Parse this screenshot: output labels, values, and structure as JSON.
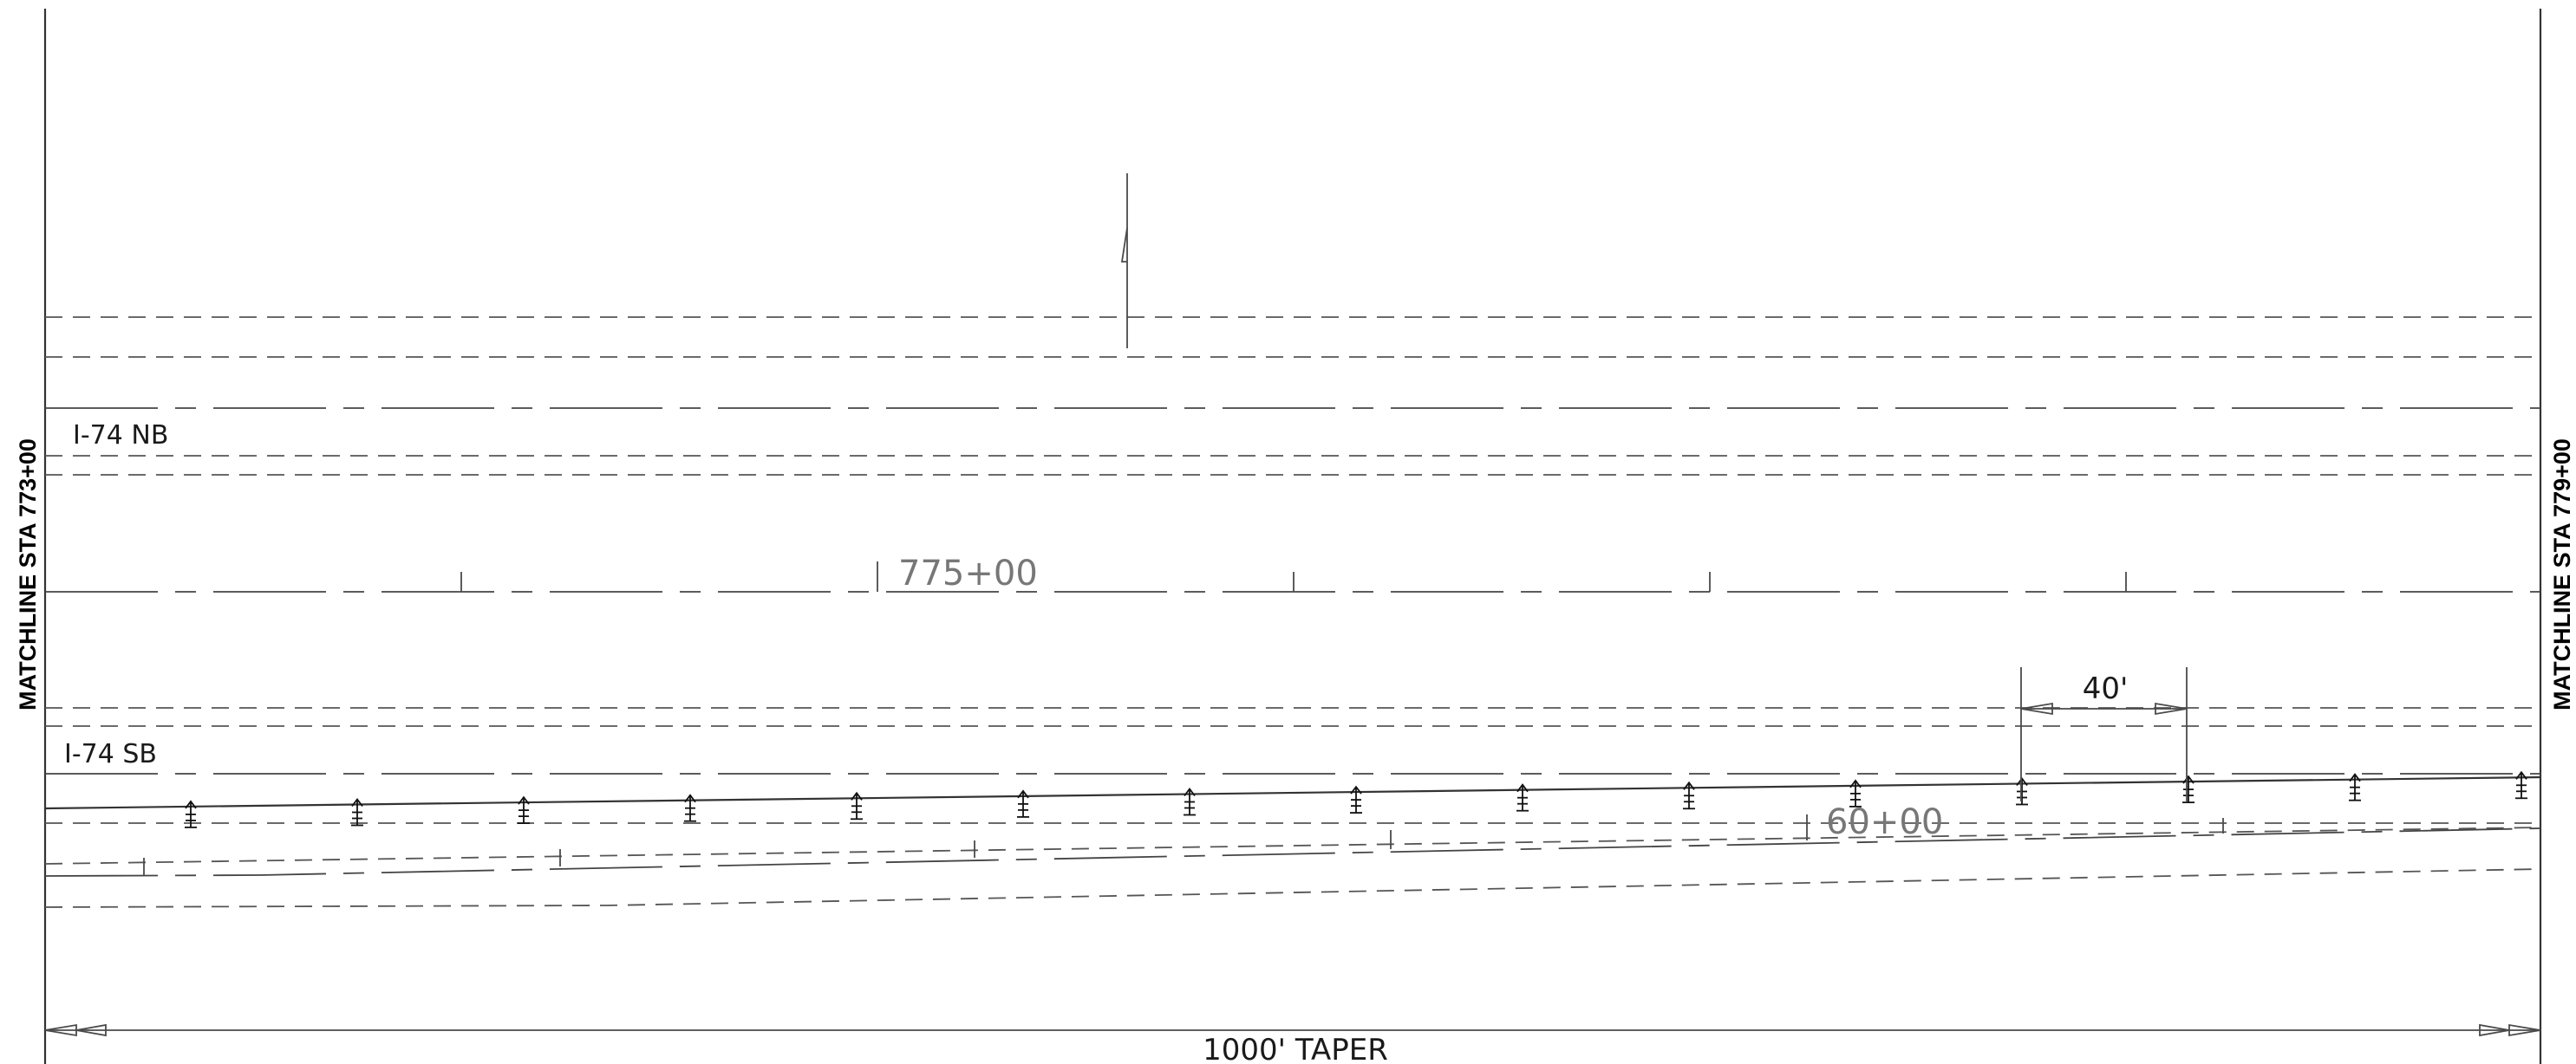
{
  "matchlines": {
    "left": "MATCHLINE STA 773+00",
    "right": "MATCHLINE STA 779+00"
  },
  "roadways": {
    "northbound": "I-74 NB",
    "southbound": "I-74 SB"
  },
  "stations": {
    "nb_station": "775+00",
    "sb_station": "60+00"
  },
  "dimensions": {
    "delineator_spacing": "40'",
    "taper": "1000' TAPER"
  },
  "delineator_count": 15,
  "icons": {
    "delineator": "delineator-post-icon",
    "sign": "sign-post-icon",
    "arrow": "dimension-arrow-icon"
  }
}
